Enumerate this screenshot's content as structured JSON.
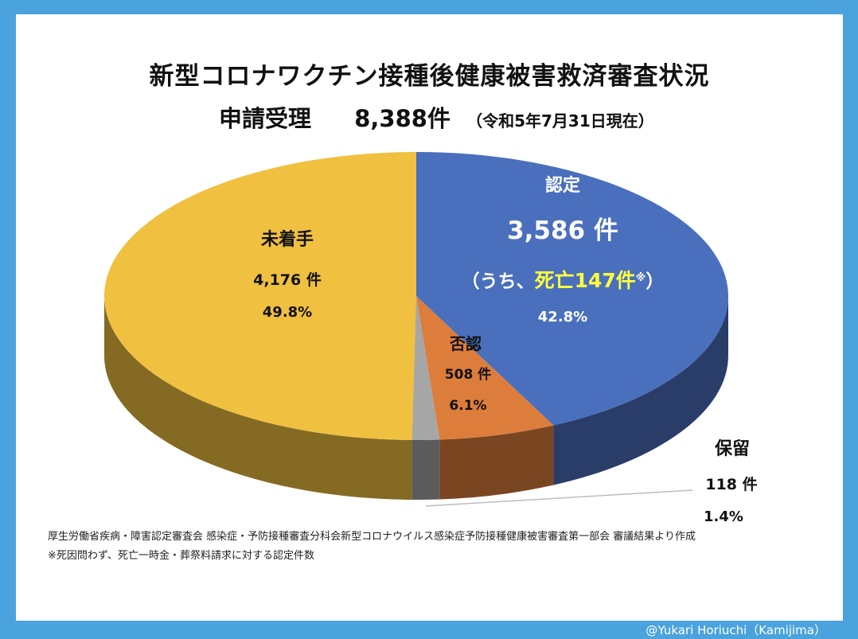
{
  "colors": {
    "frame": "#4aa3dc",
    "recognized": "#4a6fbd",
    "rejected": "#dd7d3c",
    "pending": "#a6a6a6",
    "untouched": "#f0c040",
    "highlight": "#ffff40"
  },
  "chart_data": {
    "type": "pie",
    "style": "3d",
    "title": "新型コロナワクチン接種後健康被害救済審査状況",
    "subtitle": {
      "label": "申請受理",
      "total": "8,388件",
      "note": "（令和5年7月31日現在）"
    },
    "total": 8388,
    "slices": [
      {
        "key": "recognized",
        "name": "認定",
        "value": 3586,
        "count_label": "3,586 件",
        "sub_prefix": "（うち、",
        "sub_highlight": "死亡147件",
        "sub_mark": "※",
        "sub_suffix": "）",
        "percent_label": "42.8%",
        "color": "#4a6fbd"
      },
      {
        "key": "rejected",
        "name": "否認",
        "value": 508,
        "count_label": "508 件",
        "percent_label": "6.1%",
        "color": "#dd7d3c"
      },
      {
        "key": "pending",
        "name": "保留",
        "value": 118,
        "count_label": "118 件",
        "percent_label": "1.4%",
        "color": "#a6a6a6"
      },
      {
        "key": "untouched",
        "name": "未着手",
        "value": 4176,
        "count_label": "4,176 件",
        "percent_label": "49.8%",
        "color": "#f0c040"
      }
    ]
  },
  "footnotes": {
    "source": "厚生労働省疾病・障害認定審査会 感染症・予防接種審査分科会新型コロナウイルス感染症予防接種健康被害審査第一部会 審議結果より作成",
    "note": "※死因問わず、死亡一時金・葬祭料請求に対する認定件数"
  },
  "credit": "@Yukari Horiuchi（Kamijima）"
}
